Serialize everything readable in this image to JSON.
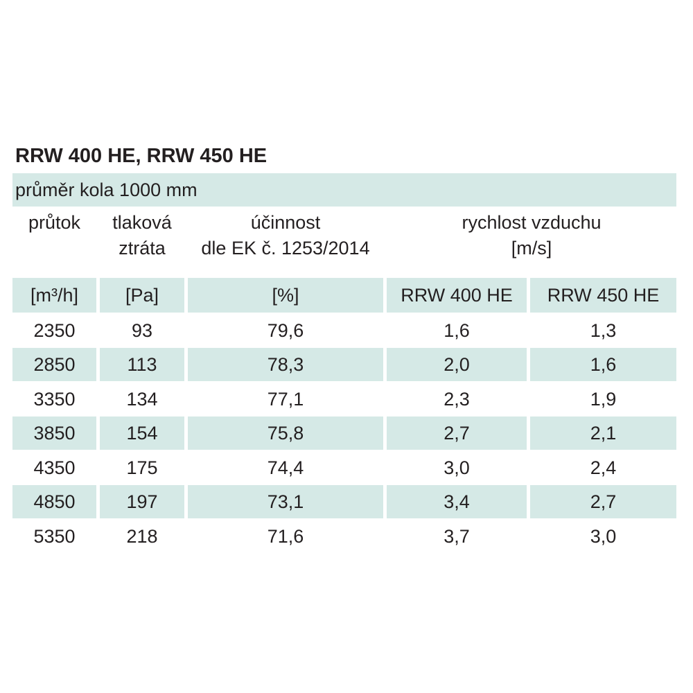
{
  "title": "RRW 400 HE, RRW 450 HE",
  "subtitle": "průměr kola 1000 mm",
  "headers": {
    "flow": [
      "průtok"
    ],
    "pressure": [
      "tlaková",
      "ztráta"
    ],
    "efficiency": [
      "účinnost",
      "dle EK č. 1253/2014"
    ],
    "velocity": [
      "rychlost vzduchu",
      "[m/s]"
    ]
  },
  "units": [
    "[m³/h]",
    "[Pa]",
    "[%]",
    "RRW 400 HE",
    "RRW 450 HE"
  ],
  "rows": [
    [
      "2350",
      "93",
      "79,6",
      "1,6",
      "1,3"
    ],
    [
      "2850",
      "113",
      "78,3",
      "2,0",
      "1,6"
    ],
    [
      "3350",
      "134",
      "77,1",
      "2,3",
      "1,9"
    ],
    [
      "3850",
      "154",
      "75,8",
      "2,7",
      "2,1"
    ],
    [
      "4350",
      "175",
      "74,4",
      "3,0",
      "2,4"
    ],
    [
      "4850",
      "197",
      "73,1",
      "3,4",
      "2,7"
    ],
    [
      "5350",
      "218",
      "71,6",
      "3,7",
      "3,0"
    ]
  ]
}
